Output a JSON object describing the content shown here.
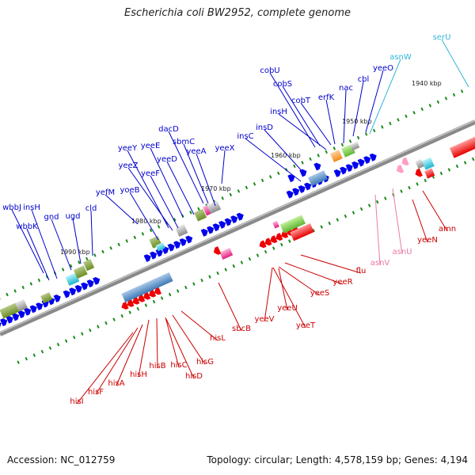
{
  "title": "Escherichia coli BW2952, complete genome",
  "footer": {
    "accession": "Accession: NC_012759",
    "summary": "Topology: circular; Length: 4,578,159 bp; Genes: 4,194"
  },
  "colors": {
    "forward_label": "#0000cc",
    "reverse_label": "#cc0000",
    "rna_label_fwd": "#33b5d8",
    "rna_label_rev": "#e97ba8",
    "ticks": "#1a8a1a"
  },
  "ticks": [
    "1940 kbp",
    "1950 kbp",
    "1960 kbp",
    "1970 kbp",
    "1980 kbp",
    "1990 kbp"
  ],
  "forward_genes": [
    "wbbJ",
    "wbbK",
    "insH",
    "gnd",
    "ugd",
    "cld",
    "yefM",
    "yoeB",
    "yeeY",
    "yeeZ",
    "yeeE",
    "yeeF",
    "dacD",
    "sbmC",
    "yeeD",
    "yeeA",
    "yeeX",
    "insC",
    "insD",
    "insH",
    "cobU",
    "cobS",
    "cobT",
    "erfK",
    "nac",
    "cbl",
    "yeeO"
  ],
  "forward_rna": [
    "asnW",
    "serU"
  ],
  "reverse_genes": [
    "hisI",
    "hisF",
    "hisA",
    "hisH",
    "hisB",
    "hisC",
    "hisD",
    "hisG",
    "hisL",
    "sbcB",
    "yeeV",
    "yeeU",
    "yeeT",
    "yeeS",
    "yeeR",
    "flu",
    "yeeN",
    "amn"
  ],
  "reverse_rna": [
    "asnV",
    "asnU"
  ]
}
